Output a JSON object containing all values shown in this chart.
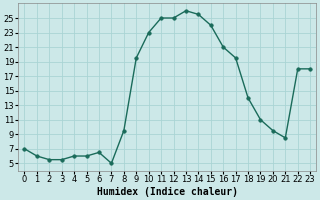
{
  "x": [
    0,
    1,
    2,
    3,
    4,
    5,
    6,
    7,
    8,
    9,
    10,
    11,
    12,
    13,
    14,
    15,
    16,
    17,
    18,
    19,
    20,
    21,
    22,
    23
  ],
  "y": [
    7,
    6,
    5.5,
    5.5,
    6,
    6,
    6.5,
    5,
    9.5,
    19.5,
    23,
    25,
    25,
    26,
    25.5,
    24,
    21,
    19.5,
    14,
    11,
    9.5,
    8.5,
    18,
    18
  ],
  "line_color": "#1a6b5a",
  "marker_color": "#1a6b5a",
  "bg_color": "#cce8e8",
  "grid_color": "#aad4d4",
  "xlabel": "Humidex (Indice chaleur)",
  "xlim": [
    -0.5,
    23.5
  ],
  "ylim": [
    4,
    27
  ],
  "yticks": [
    5,
    7,
    9,
    11,
    13,
    15,
    17,
    19,
    21,
    23,
    25
  ],
  "xticks": [
    0,
    1,
    2,
    3,
    4,
    5,
    6,
    7,
    8,
    9,
    10,
    11,
    12,
    13,
    14,
    15,
    16,
    17,
    18,
    19,
    20,
    21,
    22,
    23
  ],
  "xlabel_fontsize": 7,
  "tick_fontsize": 6,
  "linewidth": 1.0,
  "markersize": 2.5
}
